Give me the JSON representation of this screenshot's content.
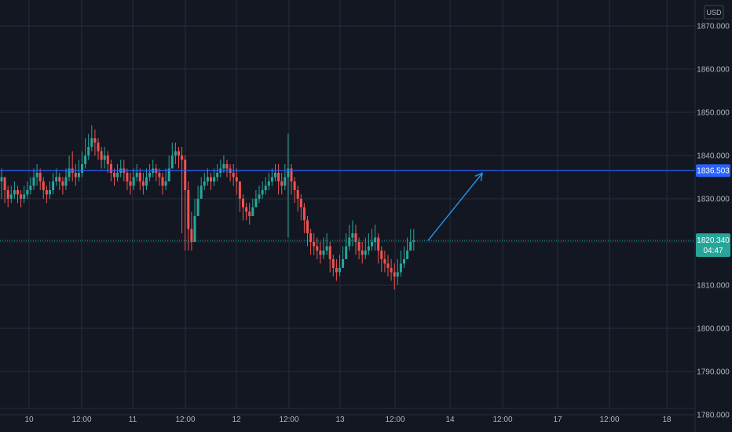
{
  "currency": "USD",
  "chart_data": {
    "type": "candlestick",
    "y_range": [
      1776,
      1876
    ],
    "y_ticks": [
      1870,
      1860,
      1850,
      1840,
      1830,
      1820,
      1810,
      1800,
      1790,
      1780
    ],
    "y_tick_labels": [
      "1870.000",
      "1860.000",
      "1850.000",
      "1840.000",
      "1830.000",
      "1820.000",
      "1810.000",
      "1800.000",
      "1790.000",
      "1780.000"
    ],
    "x_ticks": [
      "10",
      "12:00",
      "11",
      "12:00",
      "12",
      "12:00",
      "13",
      "12:00",
      "14",
      "12:00",
      "17",
      "12:00",
      "18"
    ],
    "grid": true,
    "horizontal_line": {
      "value": 1836.503,
      "label": "1836.503",
      "color": "#2962ff"
    },
    "last_price": {
      "value": 1820.34,
      "label": "1820.340",
      "countdown": "04:47",
      "color": "#26a69a"
    },
    "arrow": {
      "from_bar": 129,
      "from_price": 1820.3,
      "to_bar": 141,
      "to_price": 1835.0,
      "color": "#2196f3"
    },
    "up_color": "#26a69a",
    "down_color": "#ef5350",
    "closes": [
      1835,
      1832,
      1830,
      1831,
      1832,
      1831,
      1830,
      1831,
      1832,
      1833,
      1835,
      1836,
      1834,
      1832,
      1831,
      1832,
      1834,
      1835,
      1834,
      1833,
      1835,
      1837,
      1836,
      1835,
      1836,
      1838,
      1840,
      1842,
      1844,
      1843,
      1841,
      1839,
      1840,
      1838,
      1836,
      1835,
      1836,
      1837,
      1836,
      1834,
      1833,
      1835,
      1836,
      1834,
      1833,
      1835,
      1836,
      1837,
      1836,
      1835,
      1833,
      1834,
      1837,
      1840,
      1841,
      1840,
      1839,
      1832,
      1823,
      1820,
      1826,
      1830,
      1833,
      1834,
      1835,
      1834,
      1835,
      1836,
      1837,
      1838,
      1837,
      1836,
      1835,
      1834,
      1830,
      1828,
      1827,
      1826,
      1828,
      1830,
      1831,
      1832,
      1833,
      1834,
      1835,
      1836,
      1834,
      1833,
      1835,
      1837,
      1834,
      1832,
      1830,
      1828,
      1825,
      1822,
      1820,
      1819,
      1818,
      1817,
      1818,
      1819,
      1816,
      1814,
      1813,
      1814,
      1816,
      1819,
      1821,
      1822,
      1820,
      1818,
      1817,
      1818,
      1819,
      1820,
      1821,
      1818,
      1816,
      1815,
      1814,
      1813,
      1812,
      1813,
      1815,
      1816,
      1818,
      1820,
      1820.34
    ],
    "highs": [
      1837,
      1835,
      1833,
      1833,
      1834,
      1833,
      1832,
      1833,
      1834,
      1835,
      1837,
      1838,
      1837,
      1835,
      1833,
      1834,
      1836,
      1837,
      1836,
      1835,
      1837,
      1840,
      1841,
      1838,
      1839,
      1841,
      1844,
      1845,
      1847,
      1846,
      1844,
      1842,
      1842,
      1841,
      1839,
      1837,
      1838,
      1839,
      1839,
      1837,
      1836,
      1837,
      1838,
      1837,
      1836,
      1837,
      1838,
      1839,
      1838,
      1837,
      1836,
      1837,
      1840,
      1843,
      1843,
      1842,
      1842,
      1840,
      1834,
      1827,
      1830,
      1833,
      1835,
      1836,
      1837,
      1836,
      1837,
      1838,
      1839,
      1840,
      1839,
      1838,
      1838,
      1837,
      1834,
      1831,
      1829,
      1829,
      1830,
      1832,
      1833,
      1834,
      1835,
      1836,
      1837,
      1838,
      1838,
      1836,
      1838,
      1845,
      1838,
      1835,
      1833,
      1831,
      1829,
      1826,
      1823,
      1822,
      1821,
      1820,
      1821,
      1822,
      1820,
      1817,
      1816,
      1817,
      1819,
      1822,
      1824,
      1825,
      1824,
      1821,
      1820,
      1821,
      1822,
      1823,
      1824,
      1822,
      1819,
      1818,
      1817,
      1816,
      1815,
      1816,
      1818,
      1819,
      1821,
      1823,
      1823
    ],
    "lows": [
      1830,
      1829,
      1828,
      1829,
      1830,
      1829,
      1828,
      1829,
      1830,
      1831,
      1832,
      1833,
      1832,
      1830,
      1829,
      1830,
      1831,
      1833,
      1832,
      1831,
      1832,
      1834,
      1834,
      1833,
      1834,
      1835,
      1837,
      1839,
      1841,
      1840,
      1839,
      1837,
      1837,
      1836,
      1834,
      1833,
      1834,
      1835,
      1834,
      1832,
      1831,
      1832,
      1834,
      1832,
      1831,
      1832,
      1834,
      1835,
      1834,
      1833,
      1831,
      1832,
      1834,
      1837,
      1838,
      1837,
      1822,
      1818,
      1818,
      1818,
      1822,
      1827,
      1830,
      1832,
      1833,
      1832,
      1833,
      1834,
      1835,
      1836,
      1835,
      1834,
      1833,
      1831,
      1827,
      1825,
      1825,
      1824,
      1826,
      1828,
      1829,
      1830,
      1831,
      1832,
      1833,
      1834,
      1831,
      1831,
      1832,
      1821,
      1831,
      1829,
      1827,
      1825,
      1822,
      1819,
      1817,
      1817,
      1816,
      1815,
      1816,
      1817,
      1813,
      1812,
      1811,
      1812,
      1814,
      1816,
      1818,
      1819,
      1817,
      1816,
      1815,
      1816,
      1817,
      1818,
      1818,
      1815,
      1813,
      1813,
      1812,
      1811,
      1809,
      1810,
      1812,
      1814,
      1816,
      1818,
      1818
    ]
  }
}
